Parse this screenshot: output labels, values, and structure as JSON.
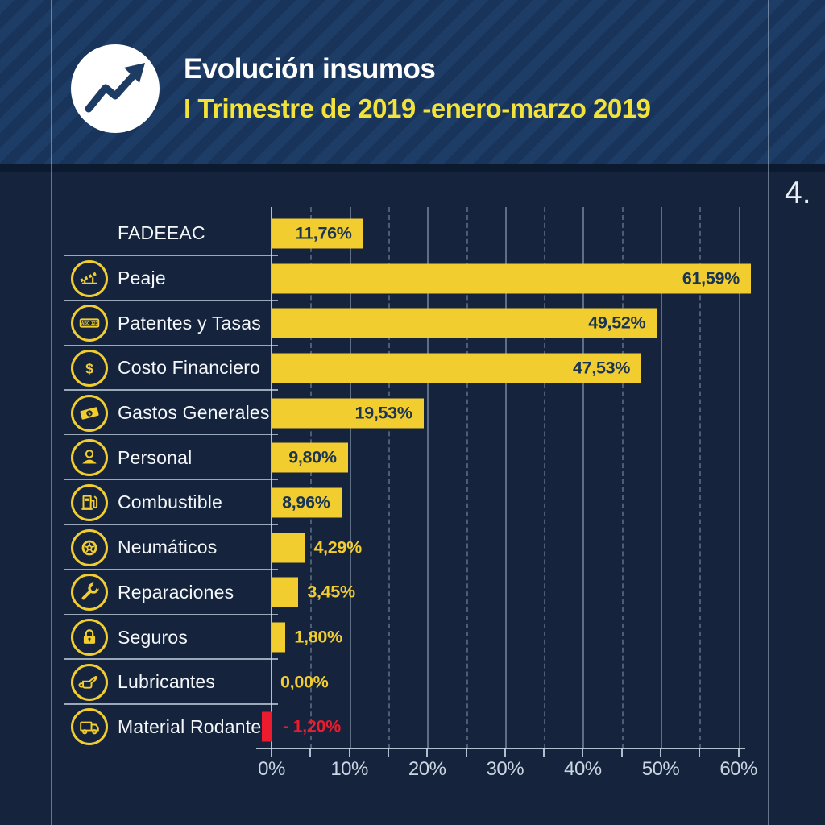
{
  "page": {
    "number_label": "4."
  },
  "header": {
    "title": "Evolución insumos",
    "subtitle": "I Trimestre de 2019 -enero-marzo 2019",
    "icon": "trend-up-icon"
  },
  "colors": {
    "body_background": "#15243C",
    "header_stripe_light": "#1E3D66",
    "header_stripe_dark": "#18345A",
    "bar_yellow": "#F2CD2F",
    "bar_negative_red": "#EC1B2E",
    "title_white": "#FFFFFF",
    "subtitle_yellow": "#F2E239",
    "value_inside_navy": "#1A3553",
    "axis_gray": "#CBD5E3"
  },
  "chart_data": {
    "type": "bar",
    "orientation": "horizontal",
    "title": "Evolución insumos",
    "subtitle": "I Trimestre de 2019 -enero-marzo 2019",
    "xlabel": "",
    "ylabel": "",
    "x_range": [
      0,
      60
    ],
    "x_unit": "%",
    "major_tick_step_pct": 10,
    "minor_tick_step_pct": 5,
    "grid": "major-solid, minor-dashed, vertical",
    "legend": "none",
    "categories": [
      "FADEEAC",
      "Peaje",
      "Patentes y Tasas",
      "Costo Financiero",
      "Gastos Generales",
      "Personal",
      "Combustible",
      "Neumáticos",
      "Reparaciones",
      "Seguros",
      "Lubricantes",
      "Material Rodante"
    ],
    "values": [
      11.76,
      61.59,
      49.52,
      47.53,
      19.53,
      9.8,
      8.96,
      4.29,
      3.45,
      1.8,
      0.0,
      -1.2
    ],
    "value_labels": [
      "11,76%",
      "61,59%",
      "49,52%",
      "47,53%",
      "19,53%",
      "9,80%",
      "8,96%",
      "4,29%",
      "3,45%",
      "1,80%",
      "0,00%",
      "- 1,20%"
    ],
    "icons": [
      null,
      "toll-gate-icon",
      "license-plate-icon",
      "dollar-icon",
      "banknote-icon",
      "person-icon",
      "fuel-pump-icon",
      "tire-icon",
      "wrench-icon",
      "padlock-icon",
      "oil-can-icon",
      "truck-icon"
    ],
    "x_ticks_major": [
      "0%",
      "10%",
      "20%",
      "30%",
      "40%",
      "50%",
      "60%"
    ]
  }
}
